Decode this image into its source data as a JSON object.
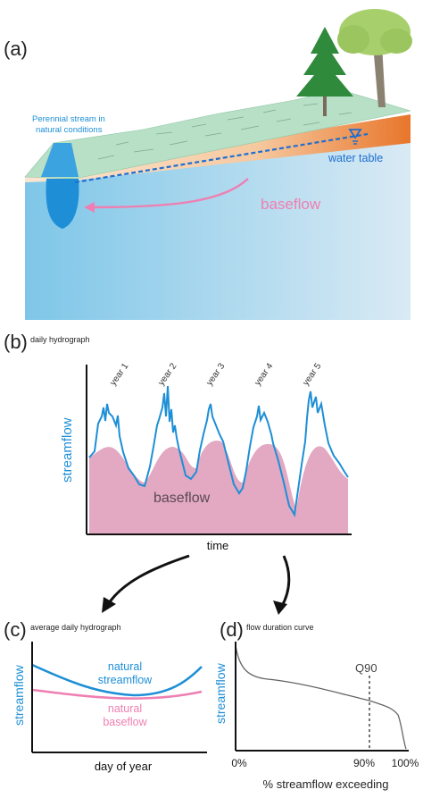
{
  "panel_a": {
    "label": "(a)",
    "stream_label_line1": "Perennial stream in",
    "stream_label_line2": "natural conditions",
    "water_table_label": "water table",
    "baseflow_label": "baseflow"
  },
  "panel_b": {
    "label": "(b)",
    "title": "daily hydrograph",
    "y_label": "streamflow",
    "x_label": "time",
    "fill_label": "baseflow",
    "years": [
      "year 1",
      "year 2",
      "year 3",
      "year 4",
      "year 5"
    ]
  },
  "panel_c": {
    "label": "(c)",
    "title": "average daily hydrograph",
    "y_label": "streamflow",
    "x_label": "day of year",
    "series1_line1": "natural",
    "series1_line2": "streamflow",
    "series2_line1": "natural",
    "series2_line2": "baseflow"
  },
  "panel_d": {
    "label": "(d)",
    "title": "flow duration curve",
    "y_label": "streamflow",
    "x_label": "% streamflow exceeding",
    "marker_label": "Q90",
    "ticks": [
      "0%",
      "90%",
      "100%"
    ]
  },
  "colors": {
    "stream_blue": "#1e8fd6",
    "baseflow_pink": "#ef7fb2",
    "baseflow_fill": "#e3a8c2",
    "groundwater": "#a9d7ec",
    "land_green": "#b7e0c6",
    "soil_orange": "#e8762b"
  }
}
